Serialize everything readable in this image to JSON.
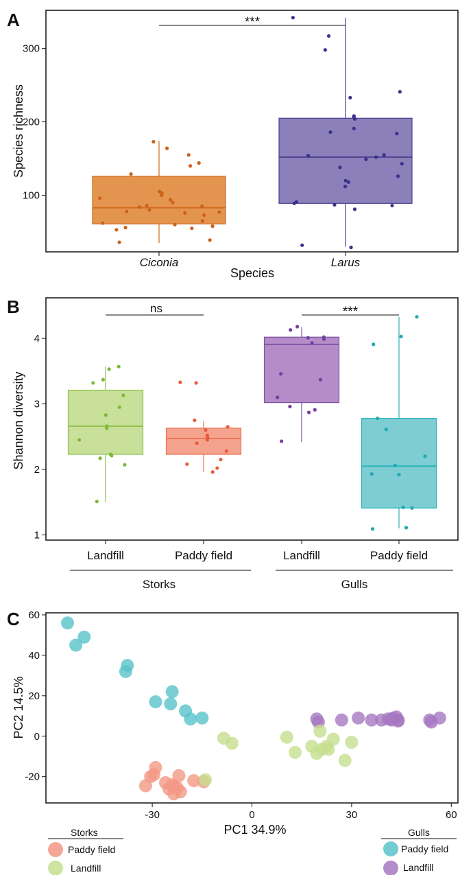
{
  "chart_data": [
    {
      "panel": "A",
      "type": "box",
      "xlabel": "Species",
      "ylabel": "Species richness",
      "ylim": [
        22,
        352
      ],
      "yticks": [
        100,
        200,
        300
      ],
      "significance": "***",
      "groups": [
        {
          "label": "Ciconia",
          "italic": true,
          "color": "#e3954f",
          "line_color": "#d2691e",
          "point_color": "#cc6118",
          "box": {
            "lower_whisker": 35,
            "q1": 61,
            "median": 83,
            "q3": 126,
            "upper_whisker": 174
          },
          "points": [
            155,
            164,
            173,
            129,
            144,
            140,
            105,
            103,
            100,
            96,
            94,
            90,
            86,
            85,
            84,
            80,
            78,
            77,
            76,
            73,
            65,
            62,
            60,
            58,
            56,
            55,
            53,
            39,
            36
          ]
        },
        {
          "label": "Larus",
          "italic": true,
          "color": "#8c80ba",
          "line_color": "#4b3c8e",
          "point_color": "#3d2f8c",
          "box": {
            "lower_whisker": 30,
            "q1": 89,
            "median": 152,
            "q3": 205,
            "upper_whisker": 342
          },
          "points": [
            342,
            317,
            298,
            241,
            233,
            208,
            207,
            204,
            191,
            186,
            184,
            155,
            154,
            152,
            149,
            143,
            138,
            126,
            120,
            118,
            112,
            91,
            89,
            87,
            86,
            81,
            32,
            29
          ]
        }
      ]
    },
    {
      "panel": "B",
      "type": "box",
      "ylabel": "Shannon diversity",
      "ylim": [
        0.92,
        4.62
      ],
      "yticks": [
        1,
        2,
        3,
        4
      ],
      "significance": [
        "ns",
        "***"
      ],
      "group_labels": [
        "Storks",
        "Gulls"
      ],
      "groups": [
        {
          "label": "Landfill",
          "group": "Storks",
          "color": "#c9e09a",
          "line_color": "#8dc04a",
          "point_color": "#7db83a",
          "box": {
            "lower_whisker": 1.5,
            "q1": 2.23,
            "median": 2.66,
            "q3": 3.21,
            "upper_whisker": 3.57
          },
          "points": [
            3.57,
            3.53,
            3.37,
            3.32,
            3.13,
            2.95,
            2.83,
            2.66,
            2.63,
            2.45,
            2.23,
            2.21,
            2.17,
            2.07,
            1.51
          ]
        },
        {
          "label": "Paddy field",
          "group": "Storks",
          "color": "#f4a38e",
          "line_color": "#eb6e4e",
          "point_color": "#e85b3b",
          "box": {
            "lower_whisker": 1.96,
            "q1": 2.23,
            "median": 2.47,
            "q3": 2.63,
            "upper_whisker": 2.74
          },
          "points": [
            3.33,
            3.32,
            2.75,
            2.65,
            2.6,
            2.52,
            2.5,
            2.48,
            2.45,
            2.4,
            2.28,
            2.15,
            2.08,
            2.02,
            1.96
          ]
        },
        {
          "label": "Landfill",
          "group": "Gulls",
          "color": "#b48dc8",
          "line_color": "#7b4fa0",
          "point_color": "#7340a0",
          "box": {
            "lower_whisker": 2.42,
            "q1": 3.02,
            "median": 3.91,
            "q3": 4.02,
            "upper_whisker": 4.17
          },
          "points": [
            4.18,
            4.13,
            4.02,
            4.01,
            3.99,
            3.93,
            3.46,
            3.37,
            3.1,
            2.96,
            2.91,
            2.87,
            2.43
          ]
        },
        {
          "label": "Paddy field",
          "group": "Gulls",
          "color": "#7dcdd3",
          "line_color": "#29b2bb",
          "point_color": "#1fa9b3",
          "box": {
            "lower_whisker": 1.1,
            "q1": 1.41,
            "median": 2.05,
            "q3": 2.78,
            "upper_whisker": 4.33
          },
          "points": [
            4.33,
            4.03,
            3.91,
            2.78,
            2.61,
            2.2,
            2.06,
            1.93,
            1.92,
            1.42,
            1.41,
            1.11,
            1.09
          ]
        }
      ]
    },
    {
      "panel": "C",
      "type": "scatter",
      "xlabel": "PC1  34.9%",
      "ylabel": "PC2  14.5%",
      "xlim": [
        -62,
        62
      ],
      "ylim": [
        -33,
        61
      ],
      "xticks": [
        -30,
        0,
        30,
        60
      ],
      "yticks": [
        -20,
        0,
        20,
        40,
        60
      ],
      "series": [
        {
          "name": "Paddy field",
          "group": "Gulls",
          "color": "#59c3c9",
          "points": [
            [
              -55.5,
              56
            ],
            [
              -50.5,
              49
            ],
            [
              -53,
              45
            ],
            [
              -37.5,
              35
            ],
            [
              -38,
              32
            ],
            [
              -29,
              17
            ],
            [
              -24,
              22
            ],
            [
              -24.5,
              16
            ],
            [
              -20,
              12.5
            ],
            [
              -18.5,
              8.5
            ],
            [
              -15,
              9
            ]
          ]
        },
        {
          "name": "Landfill",
          "group": "Gulls",
          "color": "#a678c2",
          "points": [
            [
              19.5,
              8.5
            ],
            [
              20,
              7
            ],
            [
              27,
              8
            ],
            [
              32,
              9
            ],
            [
              36,
              8
            ],
            [
              39,
              8
            ],
            [
              41,
              8.5
            ],
            [
              42,
              8
            ],
            [
              42.5,
              9
            ],
            [
              43.5,
              9.5
            ],
            [
              44,
              7.5
            ],
            [
              44,
              8
            ],
            [
              53.5,
              8
            ],
            [
              54,
              7
            ],
            [
              56.5,
              9
            ]
          ]
        },
        {
          "name": "Paddy field",
          "group": "Storks",
          "color": "#f39884",
          "points": [
            [
              -29,
              -15.5
            ],
            [
              -30.5,
              -20
            ],
            [
              -29.5,
              -19
            ],
            [
              -32,
              -24.5
            ],
            [
              -26,
              -23
            ],
            [
              -24,
              -24
            ],
            [
              -25,
              -26
            ],
            [
              -23.5,
              -25
            ],
            [
              -22.5,
              -25.5
            ],
            [
              -21.5,
              -27.5
            ],
            [
              -23.5,
              -28.5
            ],
            [
              -22,
              -19.5
            ],
            [
              -17.5,
              -22
            ],
            [
              -14.5,
              -22.5
            ]
          ]
        },
        {
          "name": "Landfill",
          "group": "Storks",
          "color": "#c5de8f",
          "points": [
            [
              -8.5,
              -1
            ],
            [
              -6,
              -3.5
            ],
            [
              -14,
              -21.5
            ],
            [
              10.5,
              -0.5
            ],
            [
              13,
              -8
            ],
            [
              18,
              -5
            ],
            [
              19.5,
              -8.5
            ],
            [
              20.5,
              2.5
            ],
            [
              21,
              -6.5
            ],
            [
              22.5,
              -5
            ],
            [
              23,
              -6.5
            ],
            [
              24.5,
              -1.5
            ],
            [
              28,
              -12
            ],
            [
              30,
              -3
            ]
          ]
        }
      ],
      "legend": [
        {
          "title": "Storks",
          "placement": "bottom-left",
          "entries": [
            "Paddy field",
            "Landfill"
          ]
        },
        {
          "title": "Gulls",
          "placement": "bottom-right",
          "entries": [
            "Paddy field",
            "Landfill"
          ]
        }
      ]
    }
  ]
}
